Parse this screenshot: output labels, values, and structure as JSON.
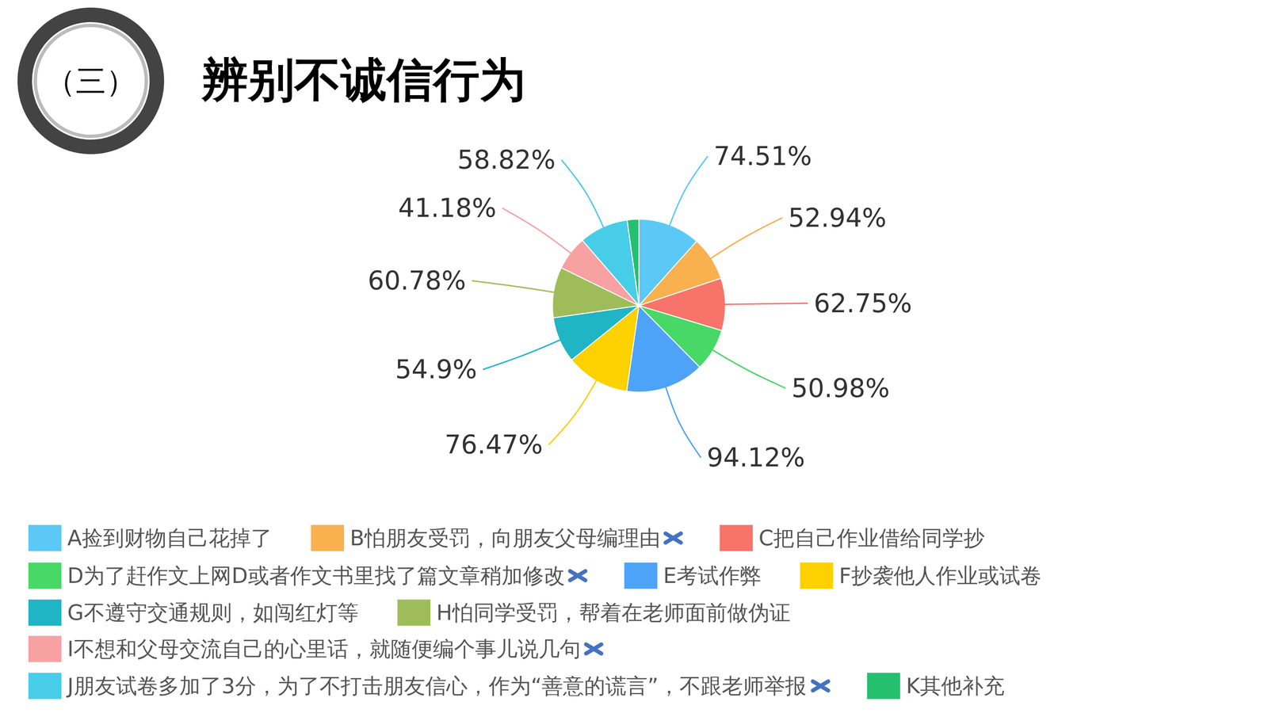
{
  "chart_data": {
    "type": "pie",
    "title": "辨别不诚信行为",
    "annotations": [
      "（三）"
    ],
    "categories": [
      "A捡到财物自己花掉了",
      "B怕朋友受罚，向朋友父母编理由",
      "C把自己作业借给同学抄",
      "D为了赶作文上网D或者作文书里找了篇文章稍加修改",
      "E考试作弊",
      "F抄袭他人作业或试卷",
      "G不遵守交通规则，如闯红灯等",
      "H怕同学受罚，帮着在老师面前做伪证",
      "I不想和父母交流自己的心里话，就随便编个事儿说几句",
      "J朋友试卷多加了3分，为了不打击朋友信心，作为“善意的谎言”，不跟老师举报",
      "K其他补充"
    ],
    "values": [
      74.51,
      52.94,
      62.75,
      50.98,
      94.12,
      76.47,
      54.9,
      60.78,
      41.18,
      58.82,
      14
    ],
    "value_labels": [
      "74.51%",
      "52.94%",
      "62.75%",
      "50.98%",
      "94.12%",
      "76.47%",
      "54.9%",
      "60.78%",
      "41.18%",
      "58.82%",
      null
    ],
    "colors": [
      "#5bc8f5",
      "#f9b04f",
      "#f8736a",
      "#47d866",
      "#4da3f7",
      "#fdd000",
      "#20b5c5",
      "#9ebd5a",
      "#f7a1a3",
      "#48cde8",
      "#24bf6f"
    ],
    "crossed": [
      false,
      true,
      false,
      true,
      false,
      false,
      false,
      false,
      true,
      true,
      false
    ],
    "data_labels": true,
    "legend": "bottom"
  }
}
